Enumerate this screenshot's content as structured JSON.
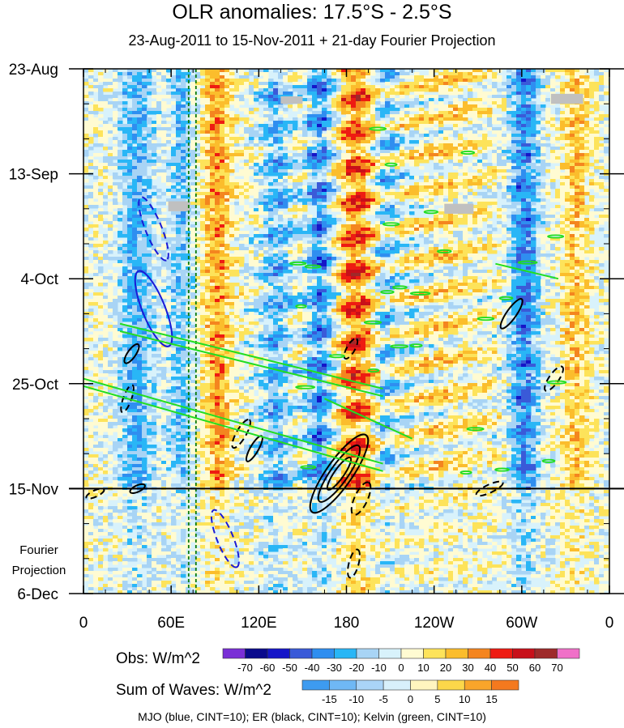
{
  "chart_data": {
    "type": "heatmap",
    "title": "OLR anomalies: 17.5°S - 2.5°S",
    "subtitle": "23-Aug-2011 to 15-Nov-2011 + 21-day Fourier Projection",
    "x_axis": {
      "label": "",
      "ticks": [
        "0",
        "60E",
        "120E",
        "180",
        "120W",
        "60W",
        "0"
      ],
      "tick_values": [
        0,
        60,
        120,
        180,
        240,
        300,
        360
      ],
      "range": [
        0,
        360
      ]
    },
    "y_axis": {
      "label": "",
      "ticks": [
        "23-Aug",
        "13-Sep",
        "4-Oct",
        "25-Oct",
        "15-Nov",
        "6-Dec"
      ],
      "tick_days": [
        0,
        21,
        42,
        63,
        84,
        105
      ],
      "range_days": [
        0,
        105
      ],
      "direction": "time increases downward"
    },
    "projection_divider_day": 84,
    "projection_label": [
      "Fourier",
      "Projection"
    ],
    "colorbar_obs": {
      "label": "Obs: W/m^2",
      "levels": [
        -70,
        -60,
        -50,
        -40,
        -30,
        -20,
        -10,
        0,
        10,
        20,
        30,
        40,
        50,
        60,
        70
      ],
      "colors": [
        "#7a2fd6",
        "#0a0a8c",
        "#1515c8",
        "#3a5ad8",
        "#2f8ef0",
        "#29b6f6",
        "#a8d4f5",
        "#d8f2fb",
        "#fffbd2",
        "#fde35a",
        "#fbbd2c",
        "#f4851f",
        "#ee1b12",
        "#c8101a",
        "#9e2a2a",
        "#f070c8"
      ]
    },
    "colorbar_waves": {
      "label": "Sum of Waves: W/m^2",
      "levels": [
        -15,
        -10,
        -5,
        0,
        5,
        10,
        15
      ],
      "colors": [
        "#3d9bf0",
        "#6fb8f5",
        "#aad4f8",
        "#d8f0fb",
        "#fff5bf",
        "#fcd74a",
        "#f9a52a",
        "#f4791e"
      ]
    },
    "contours": [
      {
        "name": "MJO",
        "color": "#1a1ad6"
      },
      {
        "name": "ER",
        "color": "#000000"
      },
      {
        "name": "Kelvin",
        "color": "#22dd22"
      }
    ],
    "reference_lines_longitude": [
      72,
      77
    ],
    "footnote": "MJO (blue, CINT=10); ER (black, CINT=10); Kelvin (green, CINT=10)"
  }
}
